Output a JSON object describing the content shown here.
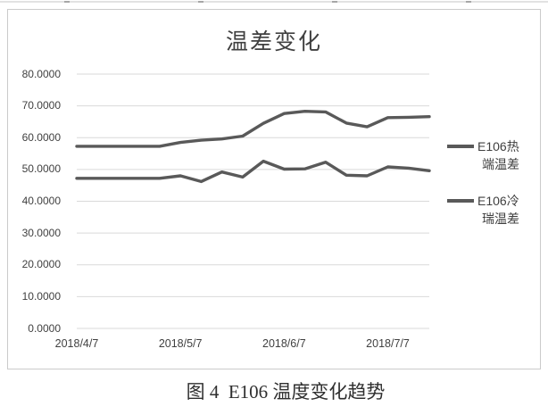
{
  "figure": {
    "caption": "图 4  E106 温度变化趋势"
  },
  "chart_data": {
    "type": "line",
    "title": "温差变化",
    "xlabel": "",
    "ylabel": "",
    "ylim": [
      0,
      80
    ],
    "grid": "horizontal",
    "legend_position": "right",
    "y_tick_labels": [
      "80.0000",
      "70.0000",
      "60.0000",
      "50.0000",
      "40.0000",
      "30.0000",
      "20.0000",
      "10.0000",
      "0.0000"
    ],
    "y_tick_values": [
      80,
      70,
      60,
      50,
      40,
      30,
      20,
      10,
      0
    ],
    "x_tick_labels": [
      "2018/4/7",
      "2018/5/7",
      "2018/6/7",
      "2018/7/7"
    ],
    "x_tick_point_indices": [
      0,
      5,
      10,
      15
    ],
    "series": [
      {
        "name": "E106热端温差",
        "legend_lines": [
          "E106热",
          "端温差"
        ],
        "color": "#595959",
        "values": [
          57.3,
          57.3,
          57.3,
          57.3,
          57.3,
          58.5,
          59.2,
          59.6,
          60.5,
          64.5,
          67.6,
          68.3,
          68.1,
          64.6,
          63.4,
          66.3,
          66.4,
          66.6
        ]
      },
      {
        "name": "E106冷瑞温差",
        "legend_lines": [
          "E106冷",
          "瑞温差"
        ],
        "color": "#595959",
        "values": [
          47.2,
          47.2,
          47.2,
          47.2,
          47.2,
          48.0,
          46.2,
          49.2,
          47.6,
          52.6,
          50.1,
          50.2,
          52.3,
          48.2,
          48.0,
          50.8,
          50.4,
          49.6
        ]
      }
    ],
    "colors": {
      "line": "#595959",
      "gridline": "#d9d9d9",
      "box_border": "#cbcbcb",
      "label_text": "#404040"
    }
  }
}
